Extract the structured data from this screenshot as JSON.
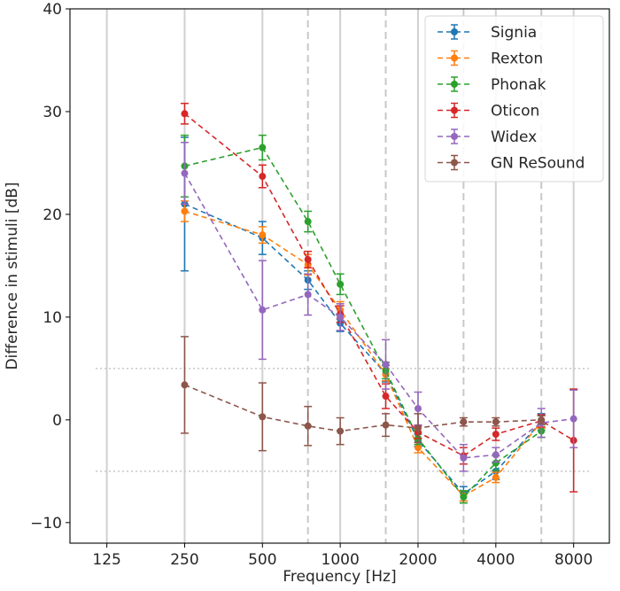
{
  "chart_data": {
    "type": "line",
    "title": "",
    "xlabel": "Frequency [Hz]",
    "ylabel": "Difference in stimuli [dB]",
    "xscale": "log2",
    "xlim": [
      90,
      11000
    ],
    "ylim": [
      -12,
      40
    ],
    "x_ticks": [
      125,
      250,
      500,
      1000,
      2000,
      4000,
      8000
    ],
    "x_tick_labels": [
      "125",
      "250",
      "500",
      "1000",
      "2000",
      "4000",
      "8000"
    ],
    "y_ticks": [
      -10,
      0,
      10,
      20,
      30,
      40
    ],
    "y_tick_labels": [
      "−10",
      "0",
      "10",
      "20",
      "30",
      "40"
    ],
    "x_grid_solid": [
      125,
      250,
      500,
      1000,
      2000,
      4000,
      8000
    ],
    "x_grid_dashed": [
      750,
      1500,
      3000,
      6000
    ],
    "h_reference_dotted": [
      5,
      -5
    ],
    "legend_position": "top-right",
    "series": [
      {
        "name": "Signia",
        "color": "#1f77b4",
        "x": [
          250,
          500,
          750,
          1000,
          1500,
          2000,
          3000,
          4000,
          6000
        ],
        "y": [
          21.0,
          17.7,
          13.6,
          9.4,
          4.5,
          -2.0,
          -7.2,
          -5.0,
          -0.2
        ],
        "yerr": [
          6.5,
          1.6,
          0.9,
          0.8,
          0.8,
          0.6,
          0.7,
          0.8,
          0.8
        ]
      },
      {
        "name": "Rexton",
        "color": "#ff7f0e",
        "x": [
          250,
          500,
          750,
          1000,
          1500,
          2000,
          3000,
          4000,
          6000
        ],
        "y": [
          20.3,
          18.0,
          15.1,
          10.7,
          4.4,
          -2.7,
          -7.4,
          -5.6,
          -0.2
        ],
        "yerr": [
          1.0,
          0.8,
          1.0,
          0.8,
          0.6,
          0.5,
          0.5,
          0.5,
          0.6
        ]
      },
      {
        "name": "Phonak",
        "color": "#2ca02c",
        "x": [
          250,
          500,
          750,
          1000,
          1500,
          2000,
          3000,
          4000,
          6000
        ],
        "y": [
          24.7,
          26.5,
          19.3,
          13.2,
          4.8,
          -1.8,
          -7.5,
          -4.2,
          -1.1
        ],
        "yerr": [
          3.0,
          1.2,
          1.0,
          1.0,
          0.8,
          0.6,
          0.6,
          0.7,
          0.6
        ]
      },
      {
        "name": "Oticon",
        "color": "#d62728",
        "x": [
          250,
          500,
          750,
          1000,
          1500,
          2000,
          3000,
          4000,
          6000,
          8000
        ],
        "y": [
          29.8,
          23.7,
          15.6,
          10.3,
          2.3,
          -1.2,
          -3.5,
          -1.4,
          -0.1,
          -2.0
        ],
        "yerr": [
          1.0,
          1.1,
          0.8,
          0.8,
          1.2,
          0.6,
          0.8,
          0.6,
          0.6,
          5.0
        ]
      },
      {
        "name": "Widex",
        "color": "#9467bd",
        "x": [
          250,
          500,
          750,
          1000,
          1500,
          2000,
          3000,
          4000,
          6000,
          8000
        ],
        "y": [
          24.0,
          10.7,
          12.2,
          10.0,
          5.4,
          1.1,
          -3.7,
          -3.4,
          -0.3,
          0.1
        ],
        "yerr": [
          3.0,
          4.8,
          2.0,
          1.3,
          2.4,
          1.6,
          1.3,
          0.7,
          1.4,
          2.8
        ]
      },
      {
        "name": "GN ReSound",
        "color": "#8c564b",
        "x": [
          250,
          500,
          750,
          1000,
          1500,
          2000,
          3000,
          4000,
          6000
        ],
        "y": [
          3.4,
          0.3,
          -0.6,
          -1.1,
          -0.5,
          -0.8,
          -0.2,
          -0.2,
          0.0
        ],
        "yerr": [
          4.7,
          3.3,
          1.9,
          1.3,
          1.1,
          1.4,
          0.4,
          0.4,
          0.4
        ]
      }
    ]
  }
}
